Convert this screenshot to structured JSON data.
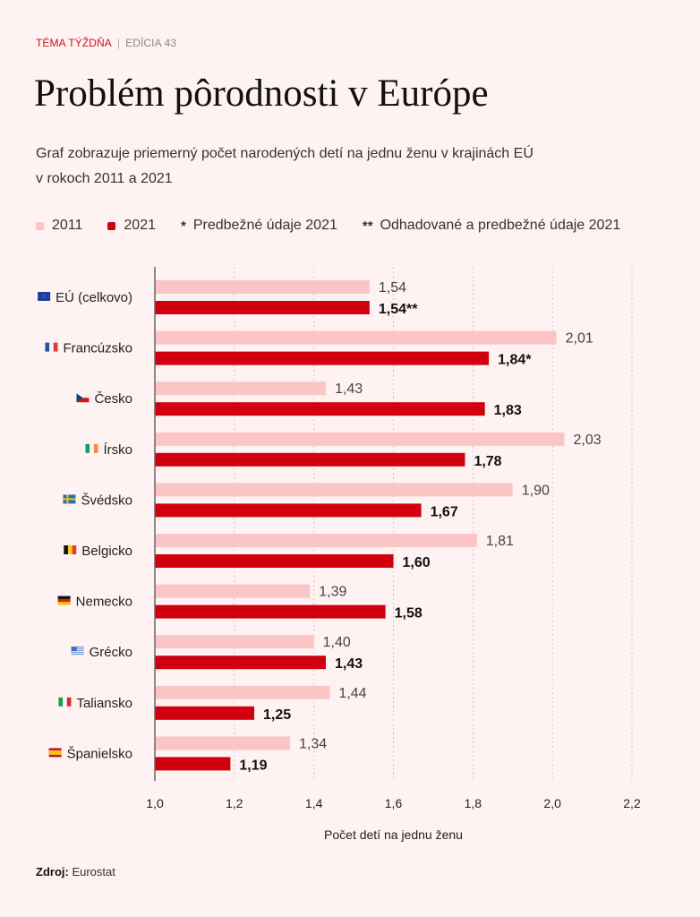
{
  "header": {
    "kicker": "TÉMA TÝŽDŇA",
    "separator": "|",
    "edition": "EDÍCIA 43",
    "title": "Problém pôrodnosti v Európe",
    "subtitle_line1": "Graf zobrazuje priemerný počet narodených detí na jednu ženu v krajinách EÚ",
    "subtitle_line2": "v rokoch 2011 a 2021"
  },
  "legend": {
    "items": [
      {
        "label": "2011",
        "color": "#fcc5c5"
      },
      {
        "label": "2021",
        "color": "#d0000e"
      }
    ],
    "notes": [
      {
        "marker": "*",
        "label": "Predbežné údaje 2021"
      },
      {
        "marker": "**",
        "label": "Odhadované a predbežné údaje 2021"
      }
    ]
  },
  "source": {
    "label": "Zdroj:",
    "value": "Eurostat"
  },
  "chart_data": {
    "type": "bar",
    "orientation": "horizontal",
    "title": "Problém pôrodnosti v Európe",
    "xlabel": "Počet detí na jednu ženu",
    "ylabel": "",
    "xlim": [
      1.0,
      2.2
    ],
    "xticks": [
      1.0,
      1.2,
      1.4,
      1.6,
      1.8,
      2.0,
      2.2
    ],
    "xtick_labels": [
      "1,0",
      "1,2",
      "1,4",
      "1,6",
      "1,8",
      "2,0",
      "2,2"
    ],
    "grid": "vertical dotted",
    "legend_position": "top",
    "categories": [
      {
        "name": "EÚ (celkovo)",
        "flag": "eu-flag"
      },
      {
        "name": "Francúzsko",
        "flag": "france-flag"
      },
      {
        "name": "Česko",
        "flag": "czechia-flag"
      },
      {
        "name": "Írsko",
        "flag": "ireland-flag"
      },
      {
        "name": "Švédsko",
        "flag": "sweden-flag"
      },
      {
        "name": "Belgicko",
        "flag": "belgium-flag"
      },
      {
        "name": "Nemecko",
        "flag": "germany-flag"
      },
      {
        "name": "Grécko",
        "flag": "greece-flag"
      },
      {
        "name": "Taliansko",
        "flag": "italy-flag"
      },
      {
        "name": "Španielsko",
        "flag": "spain-flag"
      }
    ],
    "series": [
      {
        "name": "2011",
        "color": "#fcc5c5",
        "values": [
          1.54,
          2.01,
          1.43,
          2.03,
          1.9,
          1.81,
          1.39,
          1.4,
          1.44,
          1.34
        ],
        "labels": [
          "1,54",
          "2,01",
          "1,43",
          "2,03",
          "1,90",
          "1,81",
          "1,39",
          "1,40",
          "1,44",
          "1,34"
        ]
      },
      {
        "name": "2021",
        "color": "#d0000e",
        "values": [
          1.54,
          1.84,
          1.83,
          1.78,
          1.67,
          1.6,
          1.58,
          1.43,
          1.25,
          1.19
        ],
        "labels": [
          "1,54**",
          "1,84*",
          "1,83",
          "1,78",
          "1,67",
          "1,60",
          "1,58",
          "1,43",
          "1,25",
          "1,19"
        ]
      }
    ]
  }
}
